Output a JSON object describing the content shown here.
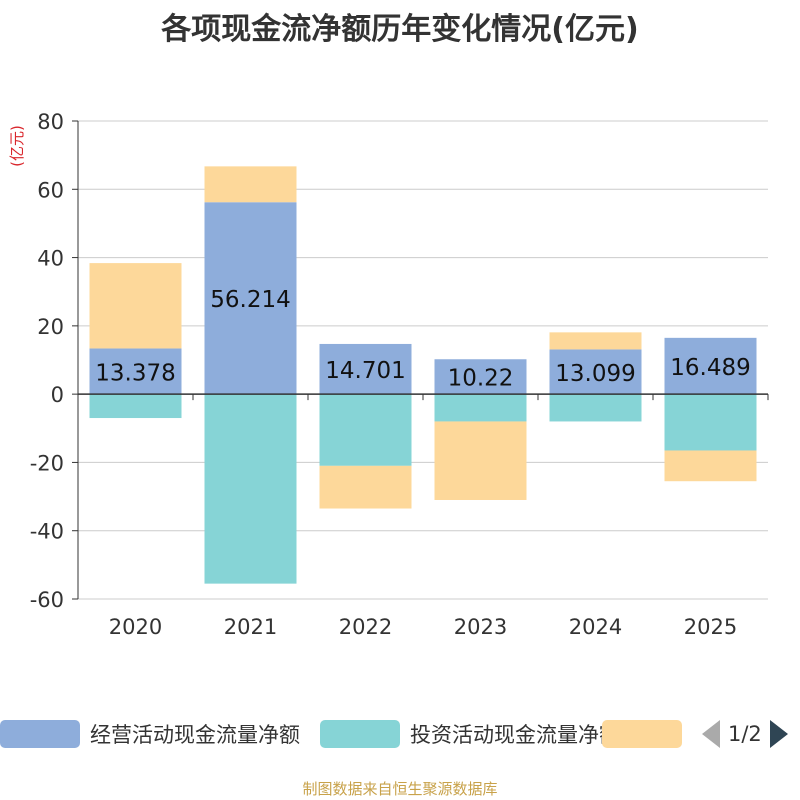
{
  "title": "各项现金流净额历年变化情况(亿元)",
  "y_unit": "(亿元)",
  "source": "制图数据来自恒生聚源数据库",
  "legend": {
    "items": [
      {
        "label": "经营活动现金流量净额",
        "color": "#8eaddb"
      },
      {
        "label": "投资活动现金流量净额",
        "color": "#86d4d6"
      },
      {
        "label": "",
        "color": "#fdd89a"
      }
    ],
    "page": "1/2"
  },
  "chart_data": {
    "type": "bar",
    "stacked": true,
    "title": "各项现金流净额历年变化情况(亿元)",
    "ylabel": "(亿元)",
    "ylim": [
      -60,
      80
    ],
    "yticks": [
      80,
      60,
      40,
      20,
      0,
      -20,
      -40,
      -60
    ],
    "categories": [
      "2020",
      "2021",
      "2022",
      "2023",
      "2024",
      "2025"
    ],
    "series": [
      {
        "name": "经营活动现金流量净额",
        "color": "#8eaddb",
        "values": [
          13.378,
          56.214,
          14.701,
          10.22,
          13.099,
          16.489
        ],
        "labels": [
          "13.378",
          "56.214",
          "14.701",
          "10.22",
          "13.099",
          "16.489"
        ]
      },
      {
        "name": "投资活动现金流量净额",
        "color": "#86d4d6",
        "values": [
          -7,
          -55.5,
          -21,
          -8,
          -8,
          -16.5
        ]
      },
      {
        "name": "",
        "color": "#fdd89a",
        "values": [
          25,
          10.5,
          -12.5,
          -23,
          5,
          -9
        ]
      }
    ]
  }
}
